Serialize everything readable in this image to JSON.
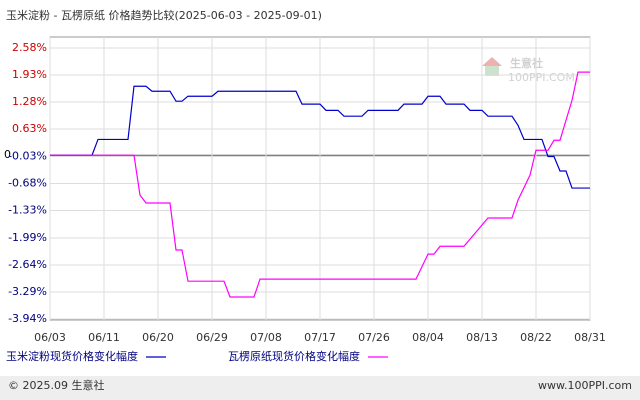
{
  "chart_data": {
    "type": "line",
    "title": "玉米淀粉 - 瓦楞原纸 价格趋势比较(2025-06-03 - 2025-09-01)",
    "watermark": [
      "生意社",
      "100PPI.COM"
    ],
    "footer_left": "© 2025.09 生意社",
    "footer_right": "www.100PPI.com",
    "xlim": [
      0,
      90
    ],
    "xticks": [
      {
        "value": 0,
        "label": "06/03"
      },
      {
        "value": 9,
        "label": "06/11"
      },
      {
        "value": 18,
        "label": "06/20"
      },
      {
        "value": 27,
        "label": "06/29"
      },
      {
        "value": 36,
        "label": "07/08"
      },
      {
        "value": 45,
        "label": "07/17"
      },
      {
        "value": 54,
        "label": "07/26"
      },
      {
        "value": 63,
        "label": "08/04"
      },
      {
        "value": 72,
        "label": "08/13"
      },
      {
        "value": 81,
        "label": "08/22"
      },
      {
        "value": 90,
        "label": "08/31"
      }
    ],
    "ylim": [
      -3.94,
      2.58
    ],
    "yticks": [
      {
        "value": 2.58,
        "label": "2.58%"
      },
      {
        "value": 1.93,
        "label": "1.93%"
      },
      {
        "value": 1.28,
        "label": "1.28%"
      },
      {
        "value": 0.63,
        "label": "0.63%"
      },
      0,
      {
        "value": -0.03,
        "label": "-0.03%"
      },
      {
        "value": -0.68,
        "label": "-0.68%"
      },
      {
        "value": -1.33,
        "label": "-1.33%"
      },
      {
        "value": -1.99,
        "label": "-1.99%"
      },
      {
        "value": -2.64,
        "label": "-2.64%"
      },
      {
        "value": -3.29,
        "label": "-3.29%"
      },
      {
        "value": -3.94,
        "label": "-3.94%"
      }
    ],
    "grid": true,
    "series": [
      {
        "name": "玉米淀粉现货价格变化幅度",
        "color": "#0000cc",
        "x": [
          0,
          7,
          8,
          13,
          14,
          16,
          17,
          20,
          21,
          22,
          23,
          27,
          28,
          41,
          42,
          45,
          46,
          48,
          49,
          52,
          53,
          58,
          59,
          62,
          63,
          65,
          66,
          69,
          70,
          72,
          73,
          77,
          78,
          79,
          82,
          83,
          84,
          85,
          86,
          87,
          90
        ],
        "values": [
          0,
          0,
          0.38,
          0.38,
          1.66,
          1.66,
          1.54,
          1.54,
          1.3,
          1.3,
          1.42,
          1.42,
          1.54,
          1.54,
          1.23,
          1.23,
          1.08,
          1.08,
          0.94,
          0.94,
          1.08,
          1.08,
          1.23,
          1.23,
          1.42,
          1.42,
          1.23,
          1.23,
          1.08,
          1.08,
          0.94,
          0.94,
          0.72,
          0.38,
          0.38,
          -0.03,
          -0.03,
          -0.38,
          -0.38,
          -0.79,
          -0.79
        ]
      },
      {
        "name": "瓦楞原纸现货价格变化幅度",
        "color": "#ff00ff",
        "x": [
          0,
          14,
          15,
          16,
          20,
          21,
          22,
          23,
          29,
          30,
          34,
          35,
          61,
          63,
          64,
          65,
          69,
          71,
          73,
          77,
          78,
          80,
          81,
          83,
          84,
          85,
          87,
          88,
          90
        ],
        "values": [
          0,
          0,
          -0.96,
          -1.15,
          -1.15,
          -2.28,
          -2.28,
          -3.03,
          -3.03,
          -3.41,
          -3.41,
          -2.98,
          -2.98,
          -2.38,
          -2.38,
          -2.19,
          -2.19,
          -1.85,
          -1.51,
          -1.51,
          -1.08,
          -0.48,
          0.12,
          0.12,
          0.36,
          0.36,
          1.32,
          2.0,
          2.0
        ]
      }
    ]
  }
}
